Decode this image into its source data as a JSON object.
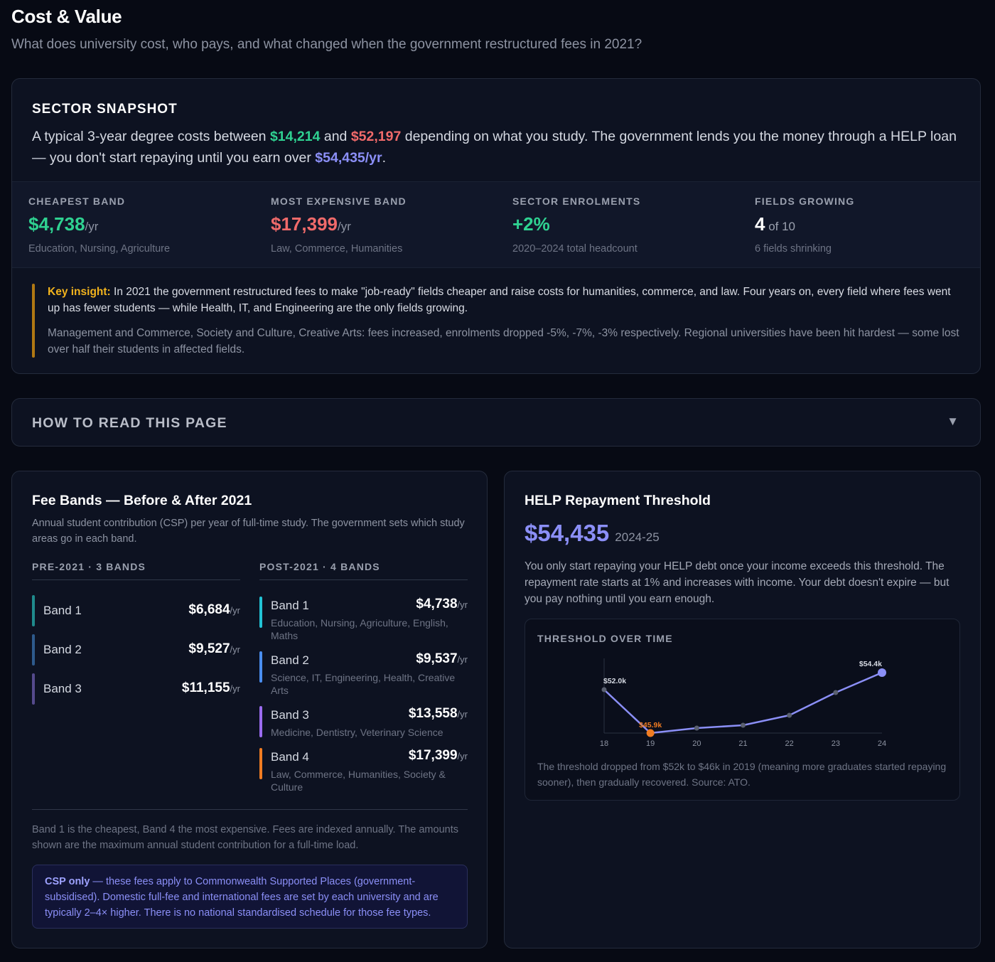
{
  "header": {
    "title": "Cost & Value",
    "subtitle": "What does university cost, who pays, and what changed when the government restructured fees in 2021?"
  },
  "snapshot": {
    "heading": "SECTOR SNAPSHOT",
    "summary": {
      "p1": "A typical 3-year degree costs between ",
      "low": "$14,214",
      "p2": " and ",
      "high": "$52,197",
      "p3": " depending on what you study. The government lends you the money through a HELP loan — you don't start repaying until you earn over ",
      "threshold": "$54,435/yr",
      "p4": "."
    },
    "stats": [
      {
        "label": "CHEAPEST BAND",
        "value": "$4,738",
        "unit": "/yr",
        "note": "Education, Nursing, Agriculture",
        "color": "#2fd191"
      },
      {
        "label": "MOST EXPENSIVE BAND",
        "value": "$17,399",
        "unit": "/yr",
        "note": "Law, Commerce, Humanities",
        "color": "#f06a6a"
      },
      {
        "label": "SECTOR ENROLMENTS",
        "value": "+2%",
        "unit": "",
        "note": "2020–2024 total headcount",
        "color": "#2fd191"
      },
      {
        "label": "FIELDS GROWING",
        "value": "4",
        "unit": " of 10",
        "note": "6 fields shrinking",
        "color": "#ffffff"
      }
    ],
    "insight": {
      "label": "Key insight:",
      "text": " In 2021 the government restructured fees to make \"job-ready\" fields cheaper and raise costs for humanities, commerce, and law. Four years on, every field where fees went up has fewer students — while Health, IT, and Engineering are the only fields growing.",
      "detail": "Management and Commerce, Society and Culture, Creative Arts: fees increased, enrolments dropped -5%, -7%, -3% respectively. Regional universities have been hit hardest — some lost over half their students in affected fields."
    }
  },
  "how_to_read": {
    "label": "HOW TO READ THIS PAGE",
    "chevron": "▼"
  },
  "fee_bands": {
    "title": "Fee Bands — Before & After 2021",
    "description": "Annual student contribution (CSP) per year of full-time study. The government sets which study areas go in each band.",
    "pre": {
      "heading": "PRE-2021 · 3 BANDS",
      "bands": [
        {
          "name": "Band 1",
          "amount": "$6,684",
          "unit": "/yr",
          "color": "#1f8a8c"
        },
        {
          "name": "Band 2",
          "amount": "$9,527",
          "unit": "/yr",
          "color": "#2e5a8c"
        },
        {
          "name": "Band 3",
          "amount": "$11,155",
          "unit": "/yr",
          "color": "#554a8c"
        }
      ]
    },
    "post": {
      "heading": "POST-2021 · 4 BANDS",
      "bands": [
        {
          "name": "Band 1",
          "amount": "$4,738",
          "unit": "/yr",
          "fields": "Education, Nursing, Agriculture, English, Maths",
          "color": "#22c3d6"
        },
        {
          "name": "Band 2",
          "amount": "$9,537",
          "unit": "/yr",
          "fields": "Science, IT, Engineering, Health, Creative Arts",
          "color": "#4a8ef0"
        },
        {
          "name": "Band 3",
          "amount": "$13,558",
          "unit": "/yr",
          "fields": "Medicine, Dentistry, Veterinary Science",
          "color": "#9b6cf0"
        },
        {
          "name": "Band 4",
          "amount": "$17,399",
          "unit": "/yr",
          "fields": "Law, Commerce, Humanities, Society & Culture",
          "color": "#f07c22"
        }
      ]
    },
    "note": "Band 1 is the cheapest, Band 4 the most expensive. Fees are indexed annually. The amounts shown are the maximum annual student contribution for a full-time load.",
    "csp": {
      "strong": "CSP only",
      "text": " — these fees apply to Commonwealth Supported Places (government-subsidised). Domestic full-fee and international fees are set by each university and are typically 2–4× higher. There is no national standardised schedule for those fee types."
    }
  },
  "help": {
    "title": "HELP Repayment Threshold",
    "amount": "$54,435",
    "year": "2024-25",
    "description": "You only start repaying your HELP debt once your income exceeds this threshold. The repayment rate starts at 1% and increases with income. Your debt doesn't expire — but you pay nothing until you earn enough.",
    "chart_heading": "THRESHOLD OVER TIME",
    "caption": "The threshold dropped from $52k to $46k in 2019 (meaning more graduates started repaying sooner), then gradually recovered. Source: ATO."
  },
  "chart_data": {
    "type": "line",
    "title": "THRESHOLD OVER TIME",
    "x": [
      "18",
      "19",
      "20",
      "21",
      "22",
      "23",
      "24"
    ],
    "series": [
      {
        "values": [
          52.0,
          45.9,
          46.6,
          47.0,
          48.4,
          51.6,
          54.4
        ]
      }
    ],
    "ylim": [
      45.9,
      54.4
    ],
    "unit": "$k",
    "annotations": [
      {
        "x": "18",
        "label": "$52.0k"
      },
      {
        "x": "19",
        "label": "$45.9k",
        "color": "#f07c22"
      },
      {
        "x": "24",
        "label": "$54.4k"
      }
    ],
    "line_color": "#8b8ff7",
    "grid": false
  }
}
